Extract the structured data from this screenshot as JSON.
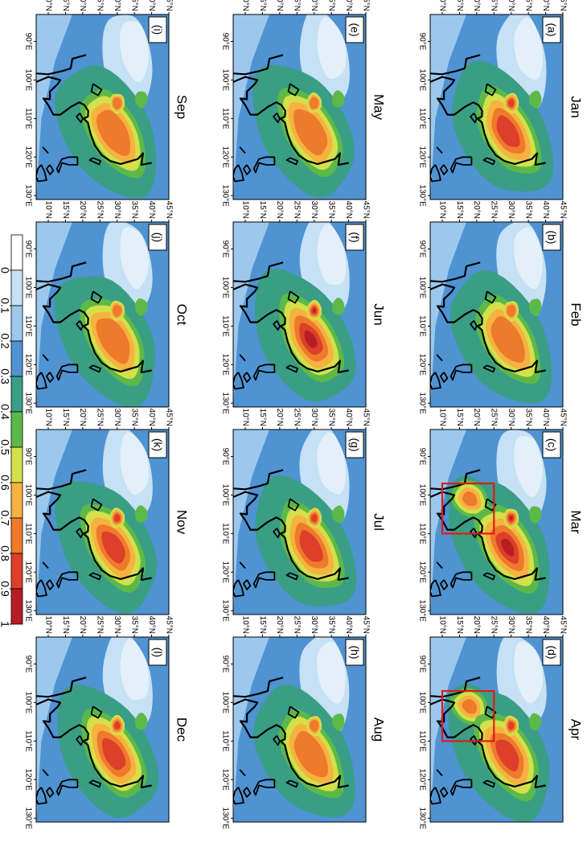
{
  "panels": [
    {
      "label": "(a)",
      "month": "Jan"
    },
    {
      "label": "(b)",
      "month": "Feb"
    },
    {
      "label": "(c)",
      "month": "Mar"
    },
    {
      "label": "(d)",
      "month": "Apr"
    },
    {
      "label": "(e)",
      "month": "May"
    },
    {
      "label": "(f)",
      "month": "Jun"
    },
    {
      "label": "(g)",
      "month": "Jul"
    },
    {
      "label": "(h)",
      "month": "Aug"
    },
    {
      "label": "(i)",
      "month": "Sep"
    },
    {
      "label": "(j)",
      "month": "Oct"
    },
    {
      "label": "(k)",
      "month": "Nov"
    },
    {
      "label": "(l)",
      "month": "Dec"
    }
  ],
  "lat_ticks": [
    {
      "value": 10,
      "label": "10°N"
    },
    {
      "value": 15,
      "label": "15°N"
    },
    {
      "value": 20,
      "label": "20°N"
    },
    {
      "value": 25,
      "label": "25°N"
    },
    {
      "value": 30,
      "label": "30°N"
    },
    {
      "value": 35,
      "label": "35°N"
    },
    {
      "value": 40,
      "label": "40°N"
    },
    {
      "value": 45,
      "label": "45°N"
    }
  ],
  "lon_ticks": [
    {
      "value": 90,
      "label": "90°E"
    },
    {
      "value": 100,
      "label": "100°E"
    },
    {
      "value": 110,
      "label": "110°E"
    },
    {
      "value": 120,
      "label": "120°E"
    },
    {
      "value": 130,
      "label": "130°E"
    }
  ],
  "colorbar": {
    "ticks": [
      0,
      0.1,
      0.2,
      0.3,
      0.4,
      0.5,
      0.6,
      0.7,
      0.8,
      0.9,
      1
    ],
    "colors": [
      "#ffffff",
      "#c6e0f4",
      "#9cc8ee",
      "#4f93d2",
      "#3a9e85",
      "#5cb948",
      "#d3e04a",
      "#f6b240",
      "#ee7a2b",
      "#dd3f2a",
      "#b61e25"
    ]
  }
}
